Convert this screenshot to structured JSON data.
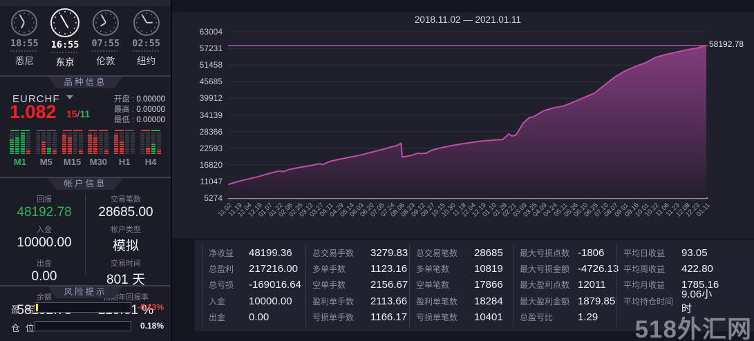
{
  "section_titles": {
    "symbol": "品种信息",
    "account": "帐户信息",
    "risk": "风险提示"
  },
  "clocks": [
    {
      "city": "悉尼",
      "time": "18:55",
      "active": false
    },
    {
      "city": "东京",
      "time": "16:55",
      "active": true
    },
    {
      "city": "伦敦",
      "time": "07:55",
      "active": false
    },
    {
      "city": "纽约",
      "time": "02:55",
      "active": false
    }
  ],
  "symbol": {
    "name": "EURCHF",
    "price": "1.082",
    "spread_left": "15",
    "spread_sep": "/",
    "spread_right": "11",
    "quotes": [
      {
        "label": "开盘",
        "value": "0.00000"
      },
      {
        "label": "最高",
        "value": "0.00000"
      },
      {
        "label": "最低",
        "value": "0.00000"
      }
    ]
  },
  "timeframes": [
    {
      "label": "M1",
      "active": true,
      "cap": [
        "green",
        "green"
      ],
      "cols": [
        {
          "color": "green",
          "lit": 7
        },
        {
          "color": "green",
          "lit": 8
        },
        {
          "color": "green",
          "lit": 10
        },
        {
          "color": "red",
          "lit": 2
        }
      ]
    },
    {
      "label": "M5",
      "active": false,
      "cap": [
        "gray",
        "gray"
      ],
      "cols": [
        {
          "color": "dim",
          "lit": 0
        },
        {
          "color": "red",
          "lit": 6
        },
        {
          "color": "green",
          "lit": 3
        },
        {
          "color": "red",
          "lit": 2
        }
      ]
    },
    {
      "label": "M15",
      "active": false,
      "cap": [
        "red",
        "red"
      ],
      "cols": [
        {
          "color": "red",
          "lit": 9
        },
        {
          "color": "red",
          "lit": 8
        },
        {
          "color": "dim",
          "lit": 0
        },
        {
          "color": "red",
          "lit": 2
        }
      ]
    },
    {
      "label": "M30",
      "active": false,
      "cap": [
        "red",
        "red"
      ],
      "cols": [
        {
          "color": "red",
          "lit": 9
        },
        {
          "color": "red",
          "lit": 8
        },
        {
          "color": "dim",
          "lit": 0
        },
        {
          "color": "red",
          "lit": 2
        }
      ]
    },
    {
      "label": "H1",
      "active": false,
      "cap": [
        "red",
        "gray"
      ],
      "cols": [
        {
          "color": "red",
          "lit": 9
        },
        {
          "color": "red",
          "lit": 6
        },
        {
          "color": "dim",
          "lit": 0
        },
        {
          "color": "dim",
          "lit": 0
        }
      ]
    },
    {
      "label": "H4",
      "active": false,
      "cap": [
        "red",
        "green"
      ],
      "cols": [
        {
          "color": "dim",
          "lit": 0
        },
        {
          "color": "red",
          "lit": 3
        },
        {
          "color": "green",
          "lit": 5
        },
        {
          "color": "red",
          "lit": 2
        }
      ]
    }
  ],
  "account": {
    "left": [
      {
        "label": "回报",
        "value": "48192.78",
        "green": true
      },
      {
        "label": "入金",
        "value": "10000.00",
        "green": false
      },
      {
        "label": "出金",
        "value": "0.00",
        "green": false
      },
      {
        "label": "余额",
        "value": "58192.78",
        "green": false
      }
    ],
    "right": [
      {
        "label": "交易笔数",
        "value": "28685.00",
        "green": false
      },
      {
        "label": "帐户类型",
        "value": "模拟",
        "green": false
      },
      {
        "label": "交易时间",
        "value": "801 天",
        "green": false
      },
      {
        "label": "预期年回报率",
        "value": "219.61 %",
        "green": false
      }
    ]
  },
  "risk": [
    {
      "label": "盈 亏",
      "value": "-0.13%",
      "value_color": "#e8413c",
      "marker": true
    },
    {
      "label": "仓 位",
      "value": "0.18%",
      "value_color": "#e8e8f0",
      "marker": false
    }
  ],
  "chart_data": {
    "type": "area",
    "title": "2018.11.02 — 2021.01.11",
    "ylabel": "",
    "xlabel": "",
    "ylim": [
      5274,
      63004
    ],
    "grid": true,
    "y_ticks": [
      63004,
      57231,
      51458,
      45685,
      39912,
      34139,
      28366,
      22593,
      16820,
      11047,
      5274
    ],
    "x_labels": [
      "11.02",
      "11.19",
      "12.04",
      "12.19",
      "01.07",
      "01.22",
      "02.08",
      "02.25",
      "03.12",
      "03.27",
      "04.11",
      "04.29",
      "05.14",
      "06.03",
      "06.20",
      "07.05",
      "07.24",
      "08.08",
      "08.23",
      "09.12",
      "09.27",
      "10.15",
      "10.30",
      "11.18",
      "12.04",
      "12.19",
      "01.10",
      "01.28",
      "02.21",
      "03.09",
      "03.25",
      "04.09",
      "04.24",
      "05.11",
      "05.26",
      "06.10",
      "06.25",
      "07.10",
      "08.07",
      "09.01",
      "09.16",
      "10.01",
      "10.22",
      "11.06",
      "11.23",
      "12.08",
      "12.23",
      "01.11"
    ],
    "balance_line": 58192.78,
    "end_label": "58192.78",
    "line_color": "#c44da3",
    "points": [
      [
        0,
        10000
      ],
      [
        1,
        11050
      ],
      [
        2,
        11900
      ],
      [
        3,
        12750
      ],
      [
        4,
        13800
      ],
      [
        5,
        14700
      ],
      [
        5.5,
        14500
      ],
      [
        6,
        15200
      ],
      [
        7,
        15900
      ],
      [
        8,
        16500
      ],
      [
        9,
        17200
      ],
      [
        9.3,
        16900
      ],
      [
        10,
        18000
      ],
      [
        11,
        18800
      ],
      [
        12,
        19500
      ],
      [
        13,
        20200
      ],
      [
        14,
        21100
      ],
      [
        15,
        22000
      ],
      [
        16,
        23000
      ],
      [
        16.5,
        23400
      ],
      [
        17,
        24300
      ],
      [
        17.12,
        19500
      ],
      [
        17.6,
        19800
      ],
      [
        18,
        20100
      ],
      [
        18.7,
        20900
      ],
      [
        19,
        20700
      ],
      [
        19.5,
        20900
      ],
      [
        20,
        21900
      ],
      [
        21,
        22800
      ],
      [
        22,
        23500
      ],
      [
        23,
        24100
      ],
      [
        24,
        24600
      ],
      [
        25,
        25100
      ],
      [
        26,
        25400
      ],
      [
        27,
        25600
      ],
      [
        27.6,
        27600
      ],
      [
        27.9,
        26800
      ],
      [
        28.3,
        27200
      ],
      [
        29,
        31300
      ],
      [
        29.6,
        33200
      ],
      [
        30,
        33500
      ],
      [
        30.5,
        34500
      ],
      [
        31,
        35600
      ],
      [
        32,
        36600
      ],
      [
        33,
        37300
      ],
      [
        34,
        38700
      ],
      [
        35,
        40200
      ],
      [
        36,
        41700
      ],
      [
        37,
        44500
      ],
      [
        38,
        47300
      ],
      [
        39,
        49400
      ],
      [
        40,
        50900
      ],
      [
        41,
        52200
      ],
      [
        42,
        54100
      ],
      [
        43,
        55100
      ],
      [
        44,
        55900
      ],
      [
        45,
        56700
      ],
      [
        46,
        57300
      ],
      [
        47,
        58192.78
      ]
    ]
  },
  "stats": {
    "columns": [
      [
        {
          "label": "净收益",
          "value": "48199.36"
        },
        {
          "label": "总盈利",
          "value": "217216.00"
        },
        {
          "label": "总亏损",
          "value": "-169016.64"
        },
        {
          "label": "入金",
          "value": "10000.00"
        },
        {
          "label": "出金",
          "value": "0.00"
        }
      ],
      [
        {
          "label": "总交易手数",
          "value": "3279.83"
        },
        {
          "label": "多单手数",
          "value": "1123.16"
        },
        {
          "label": "空单手数",
          "value": "2156.67"
        },
        {
          "label": "盈利单手数",
          "value": "2113.66"
        },
        {
          "label": "亏损单手数",
          "value": "1166.17"
        }
      ],
      [
        {
          "label": "总交易笔数",
          "value": "28685"
        },
        {
          "label": "多单笔数",
          "value": "10819"
        },
        {
          "label": "空单笔数",
          "value": "17866"
        },
        {
          "label": "盈利单笔数",
          "value": "18284"
        },
        {
          "label": "亏损单笔数",
          "value": "10401"
        }
      ],
      [
        {
          "label": "最大亏损点数",
          "value": "-1806"
        },
        {
          "label": "最大亏损金额",
          "value": "-4726.13"
        },
        {
          "label": "最大盈利点数",
          "value": "12011"
        },
        {
          "label": "最大盈利金额",
          "value": "1879.85"
        },
        {
          "label": "总盈亏比",
          "value": "1.29"
        }
      ],
      [
        {
          "label": "平均日收益",
          "value": "93.05"
        },
        {
          "label": "平均周收益",
          "value": "422.80"
        },
        {
          "label": "平均月收益",
          "value": "1785.16"
        },
        {
          "label": "平均持仓时间",
          "value": "9.06小时"
        }
      ]
    ]
  },
  "watermark": "518外汇网"
}
